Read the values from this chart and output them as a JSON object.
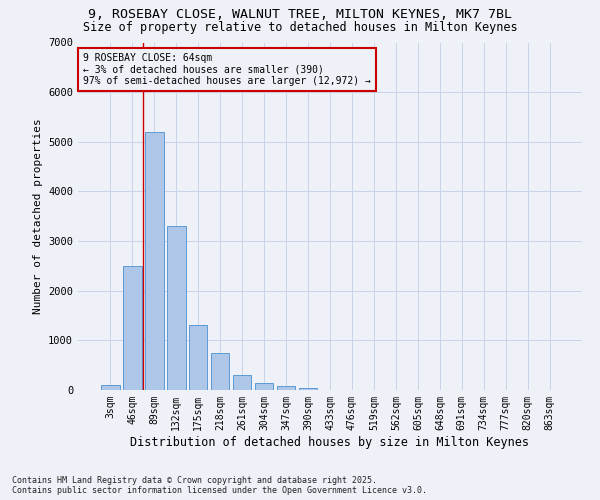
{
  "title_line1": "9, ROSEBAY CLOSE, WALNUT TREE, MILTON KEYNES, MK7 7BL",
  "title_line2": "Size of property relative to detached houses in Milton Keynes",
  "xlabel": "Distribution of detached houses by size in Milton Keynes",
  "ylabel": "Number of detached properties",
  "categories": [
    "3sqm",
    "46sqm",
    "89sqm",
    "132sqm",
    "175sqm",
    "218sqm",
    "261sqm",
    "304sqm",
    "347sqm",
    "390sqm",
    "433sqm",
    "476sqm",
    "519sqm",
    "562sqm",
    "605sqm",
    "648sqm",
    "691sqm",
    "734sqm",
    "777sqm",
    "820sqm",
    "863sqm"
  ],
  "bar_values": [
    100,
    2500,
    5200,
    3300,
    1300,
    750,
    300,
    150,
    80,
    40,
    10,
    5,
    2,
    1,
    0,
    0,
    0,
    0,
    0,
    0,
    0
  ],
  "bar_color": "#aec6e8",
  "bar_edge_color": "#5b9bd5",
  "grid_color": "#c8d4e8",
  "background_color": "#eef2f8",
  "vline_color": "#cc0000",
  "vline_x_index": 1.5,
  "annotation_title": "9 ROSEBAY CLOSE: 64sqm",
  "annotation_line2": "← 3% of detached houses are smaller (390)",
  "annotation_line3": "97% of semi-detached houses are larger (12,972) →",
  "annotation_box_color": "#cc0000",
  "ylim": [
    0,
    7000
  ],
  "yticks": [
    0,
    1000,
    2000,
    3000,
    4000,
    5000,
    6000,
    7000
  ],
  "footer_line1": "Contains HM Land Registry data © Crown copyright and database right 2025.",
  "footer_line2": "Contains public sector information licensed under the Open Government Licence v3.0.",
  "title_fontsize": 9.5,
  "subtitle_fontsize": 8.5,
  "axis_label_fontsize": 8,
  "tick_fontsize": 7,
  "footer_fontsize": 6,
  "annotation_fontsize": 7
}
